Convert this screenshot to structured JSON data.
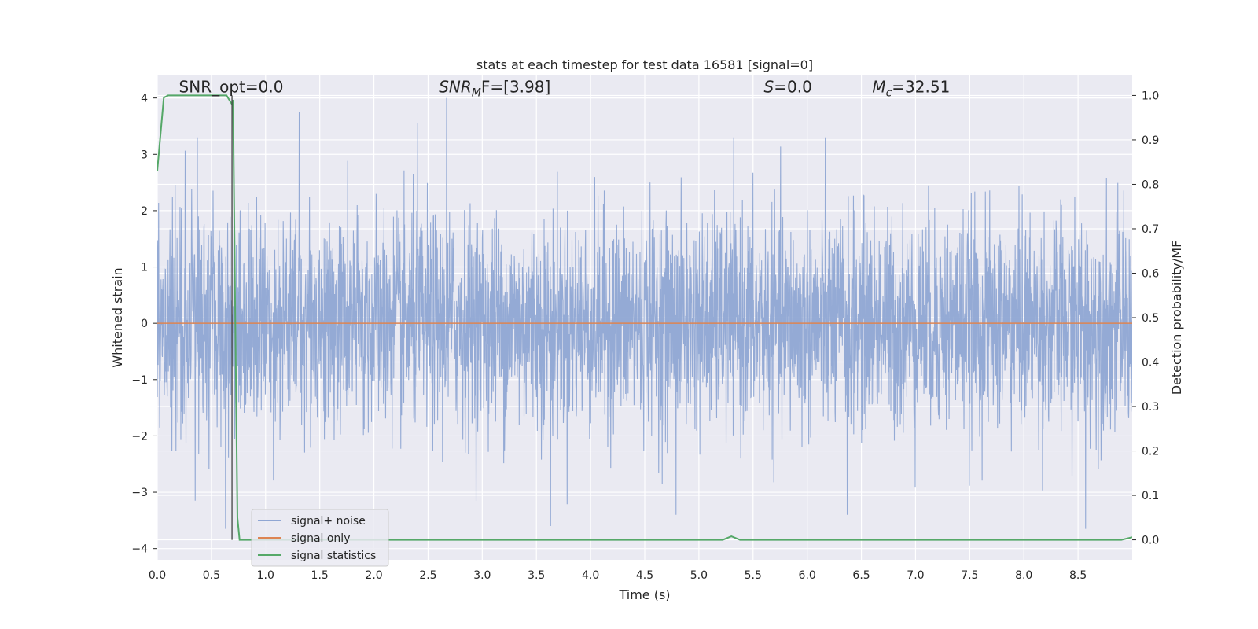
{
  "chart_data": {
    "type": "line",
    "title": "stats at each timestep for test data 16581 [signal=0]",
    "xlabel": "Time (s)",
    "ylabel": "Whitened strain",
    "y2label": "Detection probability/MF",
    "xlim": [
      0.0,
      9.0
    ],
    "ylim": [
      -4.2,
      4.4
    ],
    "y2lim": [
      -0.045,
      1.045
    ],
    "xticks": [
      "0.0",
      "0.5",
      "1.0",
      "1.5",
      "2.0",
      "2.5",
      "3.0",
      "3.5",
      "4.0",
      "4.5",
      "5.0",
      "5.5",
      "6.0",
      "6.5",
      "7.0",
      "7.5",
      "8.0",
      "8.5"
    ],
    "xtick_values": [
      0.0,
      0.5,
      1.0,
      1.5,
      2.0,
      2.5,
      3.0,
      3.5,
      4.0,
      4.5,
      5.0,
      5.5,
      6.0,
      6.5,
      7.0,
      7.5,
      8.0,
      8.5
    ],
    "yticks": [
      "−4",
      "−3",
      "−2",
      "−1",
      "0",
      "1",
      "2",
      "3",
      "4"
    ],
    "ytick_values": [
      -4,
      -3,
      -2,
      -1,
      0,
      1,
      2,
      3,
      4
    ],
    "y2ticks": [
      "0.0",
      "0.1",
      "0.2",
      "0.3",
      "0.4",
      "0.5",
      "0.6",
      "0.7",
      "0.8",
      "0.9",
      "1.0"
    ],
    "y2tick_values": [
      0.0,
      0.1,
      0.2,
      0.3,
      0.4,
      0.5,
      0.6,
      0.7,
      0.8,
      0.9,
      1.0
    ],
    "grid": true,
    "legend_position": "bottom-left",
    "annotations": [
      {
        "main": "SNR_opt=0.0",
        "sub": "",
        "rest": "",
        "x": 0.2,
        "y": 4.1
      },
      {
        "main": "SNR",
        "sub": "M",
        "rest": "F=[3.98]",
        "x": 2.6,
        "y": 4.1
      },
      {
        "main": "S",
        "sub": "",
        "rest": "=0.0",
        "x": 5.6,
        "y": 4.1
      },
      {
        "main": "M",
        "sub": "c",
        "rest": "=32.51",
        "x": 6.6,
        "y": 4.1
      }
    ],
    "marker_time": 0.69,
    "series": [
      {
        "name": "signal+ noise",
        "color": "#8fa6d3",
        "axis": "left",
        "description": "whitened noise, approx. Gaussian with sd 0.95, extreme values about ±3.8",
        "peaks": [
          {
            "x": 1.31,
            "y": 3.75
          },
          {
            "x": 2.67,
            "y": 4.0
          },
          {
            "x": 2.4,
            "y": 3.55
          },
          {
            "x": 3.63,
            "y": -3.6
          },
          {
            "x": 4.79,
            "y": -3.4
          },
          {
            "x": 6.37,
            "y": -3.4
          },
          {
            "x": 8.57,
            "y": -3.65
          },
          {
            "x": 0.63,
            "y": -3.65
          },
          {
            "x": 0.35,
            "y": -3.15
          }
        ]
      },
      {
        "name": "signal only",
        "color": "#dd8452",
        "axis": "left",
        "x": [
          0.0,
          9.0
        ],
        "y": [
          0.0,
          0.0
        ]
      },
      {
        "name": "signal statistics",
        "color": "#55a868",
        "axis": "right",
        "x": [
          0.0,
          0.06,
          0.1,
          0.14,
          0.2,
          0.3,
          0.4,
          0.5,
          0.6,
          0.64,
          0.69,
          0.7,
          0.72,
          0.74,
          0.76,
          0.8,
          1.0,
          2.0,
          3.0,
          4.0,
          5.0,
          5.22,
          5.3,
          5.38,
          5.5,
          6.0,
          7.0,
          8.0,
          8.9,
          9.0
        ],
        "y": [
          0.83,
          0.995,
          1.0,
          1.0,
          1.0,
          1.0,
          1.0,
          1.0,
          1.0,
          1.0,
          0.98,
          0.99,
          0.5,
          0.05,
          0.0,
          0.0,
          0.0,
          0.0,
          0.0,
          0.0,
          0.0,
          0.0,
          0.008,
          0.0,
          0.0,
          0.0,
          0.0,
          0.0,
          0.0,
          0.006
        ]
      }
    ]
  },
  "legend": {
    "items": [
      {
        "label": "signal+ noise",
        "color": "#8fa6d3"
      },
      {
        "label": "signal only",
        "color": "#dd8452"
      },
      {
        "label": "signal statistics",
        "color": "#55a868"
      }
    ]
  }
}
